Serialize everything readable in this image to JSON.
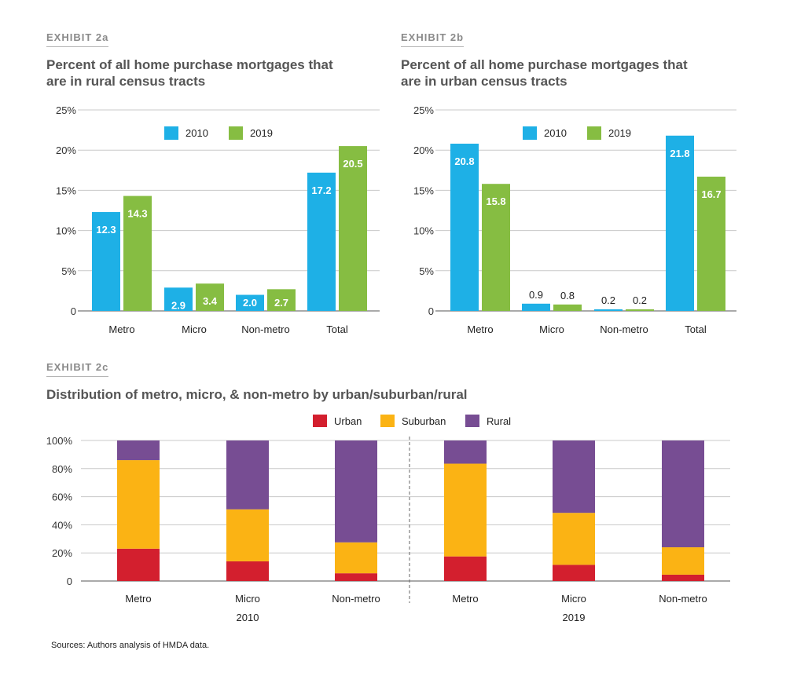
{
  "source": "Sources: Authors analysis of HMDA data.",
  "colors": {
    "c2010": "#1eb0e6",
    "c2019": "#86bd42",
    "urban": "#d31f2e",
    "suburban": "#fbb314",
    "rural": "#774d93",
    "grid": "#c8c8c8",
    "axis": "#555555"
  },
  "chart_data": [
    {
      "id": "2a",
      "exhibit": "EXHIBIT 2a",
      "type": "bar",
      "title": "Percent of all home purchase mortgages that are in rural census tracts",
      "categories": [
        "Metro",
        "Micro",
        "Non-metro",
        "Total"
      ],
      "series": [
        {
          "name": "2010",
          "values": [
            12.3,
            2.9,
            2.0,
            17.2
          ],
          "labels": [
            "12.3",
            "2.9",
            "2.0",
            "17.2"
          ]
        },
        {
          "name": "2019",
          "values": [
            14.3,
            3.4,
            2.7,
            20.5
          ],
          "labels": [
            "14.3",
            "3.4",
            "2.7",
            "20.5"
          ]
        }
      ],
      "ylim": [
        0,
        25
      ],
      "yticks": [
        0,
        5,
        10,
        15,
        20,
        25
      ],
      "ytick_labels": [
        "0",
        "5%",
        "10%",
        "15%",
        "20%",
        "25%"
      ],
      "legend": "top-center"
    },
    {
      "id": "2b",
      "exhibit": "EXHIBIT 2b",
      "type": "bar",
      "title": "Percent of all home purchase mortgages that are in urban census tracts",
      "categories": [
        "Metro",
        "Micro",
        "Non-metro",
        "Total"
      ],
      "series": [
        {
          "name": "2010",
          "values": [
            20.8,
            0.9,
            0.2,
            21.8
          ],
          "labels": [
            "20.8",
            "0.9",
            "0.2",
            "21.8"
          ]
        },
        {
          "name": "2019",
          "values": [
            15.8,
            0.8,
            0.2,
            16.7
          ],
          "labels": [
            "15.8",
            "0.8",
            "0.2",
            "16.7"
          ]
        }
      ],
      "ylim": [
        0,
        25
      ],
      "yticks": [
        0,
        5,
        10,
        15,
        20,
        25
      ],
      "ytick_labels": [
        "0",
        "5%",
        "10%",
        "15%",
        "20%",
        "25%"
      ],
      "legend": "top-center"
    },
    {
      "id": "2c",
      "exhibit": "EXHIBIT 2c",
      "type": "bar",
      "stacked": true,
      "title": "Distribution of metro, micro, & non-metro by urban/suburban/rural",
      "categories": [
        "Metro",
        "Micro",
        "Non-metro",
        "Metro",
        "Micro",
        "Non-metro"
      ],
      "groups": [
        "2010",
        "2019"
      ],
      "series": [
        {
          "name": "Urban",
          "values": [
            23,
            14,
            5.5,
            17.5,
            11.5,
            4.5
          ]
        },
        {
          "name": "Suburban",
          "values": [
            63,
            37,
            22,
            66,
            37,
            19.5
          ]
        },
        {
          "name": "Rural",
          "values": [
            14,
            49,
            72.5,
            16.5,
            51.5,
            76
          ]
        }
      ],
      "ylim": [
        0,
        100
      ],
      "yticks": [
        0,
        20,
        40,
        60,
        80,
        100
      ],
      "ytick_labels": [
        "0",
        "20%",
        "40%",
        "60%",
        "80%",
        "100%"
      ],
      "legend": "top-center"
    }
  ]
}
